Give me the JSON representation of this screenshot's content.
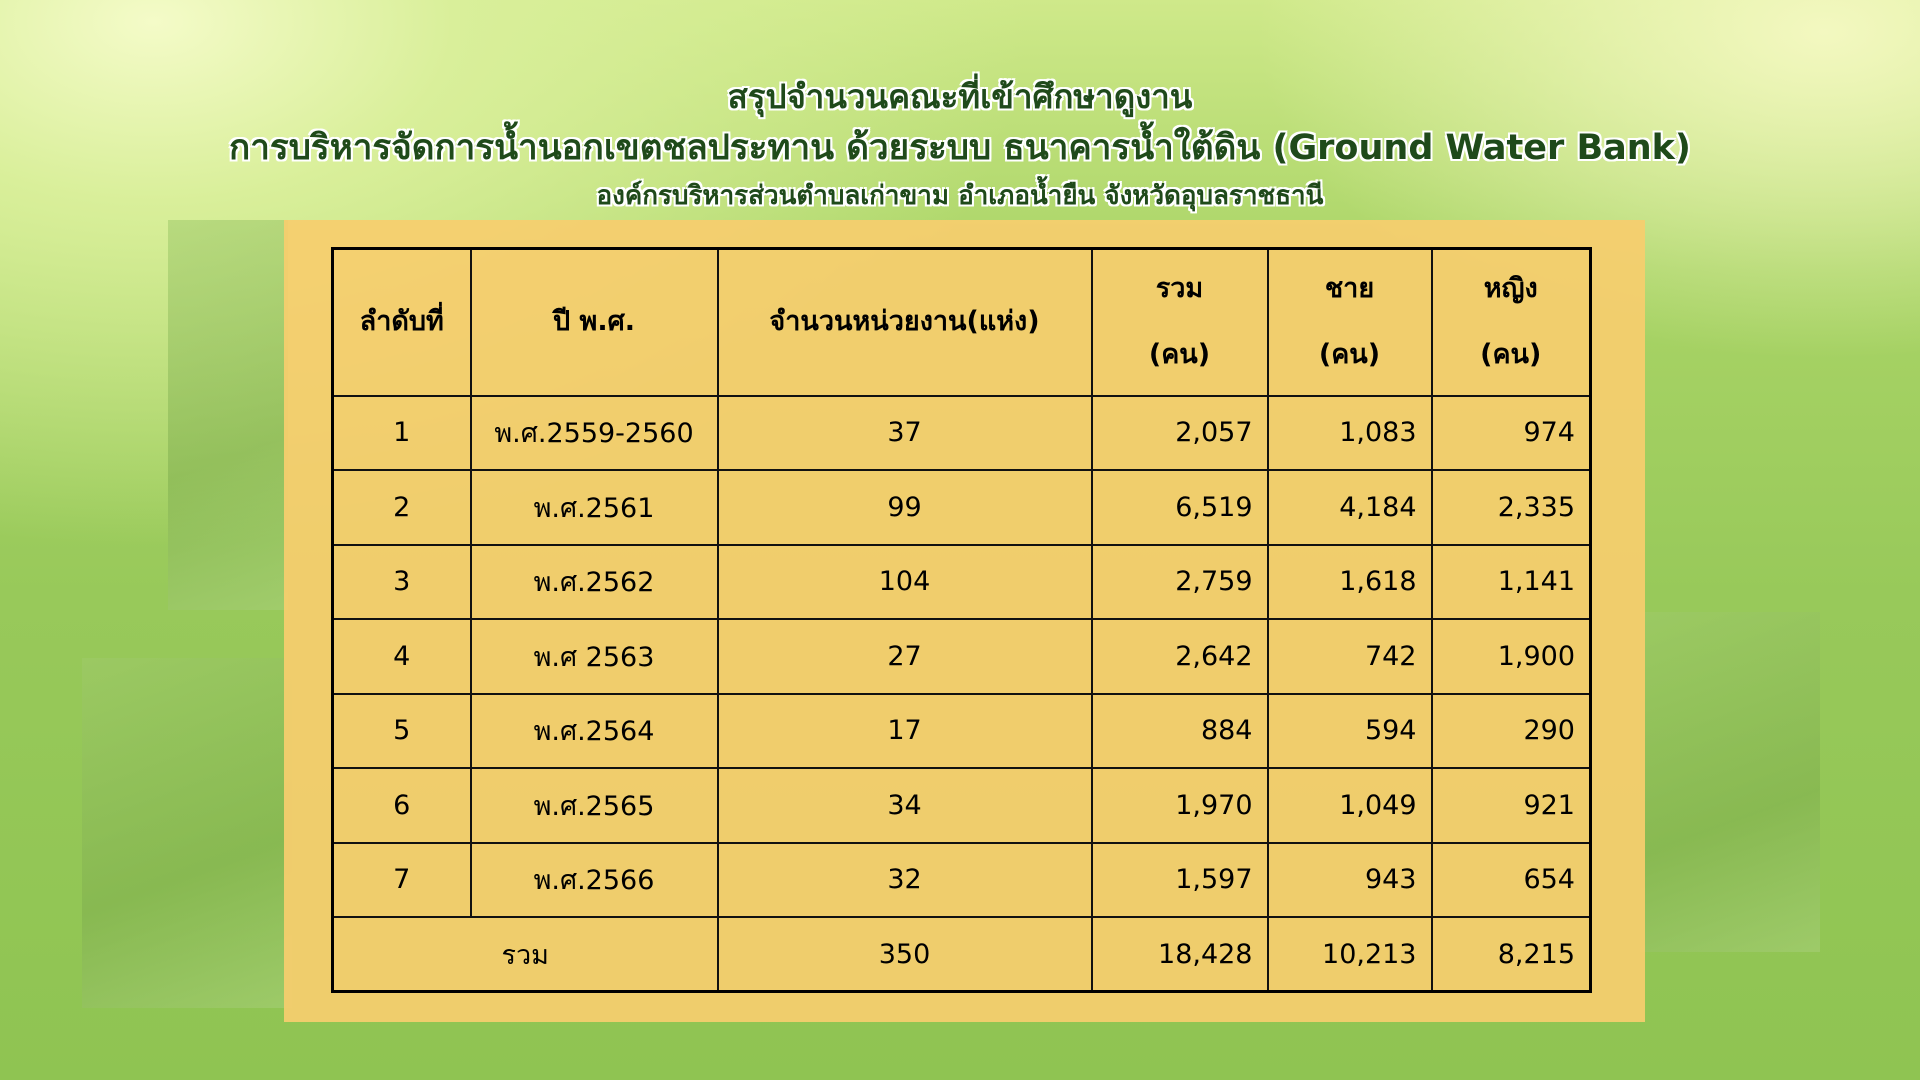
{
  "title": {
    "line1": "สรุปจำนวนคณะที่เข้าศึกษาดูงาน",
    "line2": "การบริหารจัดการน้ำนอกเขตชลประทาน ด้วยระบบ ธนาคารน้ำใต้ดิน (Ground Water Bank)",
    "line3": "องค์กรบริหารส่วนตำบลเก่าขาม อำเภอน้ำยืน จังหวัดอุบลราชธานี"
  },
  "table": {
    "headers": [
      {
        "l1": "ลำดับที่",
        "l2": ""
      },
      {
        "l1": "ปี พ.ศ.",
        "l2": ""
      },
      {
        "l1": "จำนวนหน่วยงาน(แห่ง)",
        "l2": ""
      },
      {
        "l1": "รวม",
        "l2": "(คน)"
      },
      {
        "l1": "ชาย",
        "l2": "(คน)"
      },
      {
        "l1": "หญิง",
        "l2": "(คน)"
      }
    ],
    "rows": [
      [
        "1",
        "พ.ศ.2559-2560",
        "37",
        "2,057",
        "1,083",
        "974"
      ],
      [
        "2",
        "พ.ศ.2561",
        "99",
        "6,519",
        "4,184",
        "2,335"
      ],
      [
        "3",
        "พ.ศ.2562",
        "104",
        "2,759",
        "1,618",
        "1,141"
      ],
      [
        "4",
        "พ.ศ 2563",
        "27",
        "2,642",
        "742",
        "1,900"
      ],
      [
        "5",
        "พ.ศ.2564",
        "17",
        "884",
        "594",
        "290"
      ],
      [
        "6",
        "พ.ศ.2565",
        "34",
        "1,970",
        "1,049",
        "921"
      ],
      [
        "7",
        "พ.ศ.2566",
        "32",
        "1,597",
        "943",
        "654"
      ]
    ],
    "total": {
      "label": "รวม",
      "units": "350",
      "total": "18,428",
      "male": "10,213",
      "female": "8,215"
    }
  }
}
